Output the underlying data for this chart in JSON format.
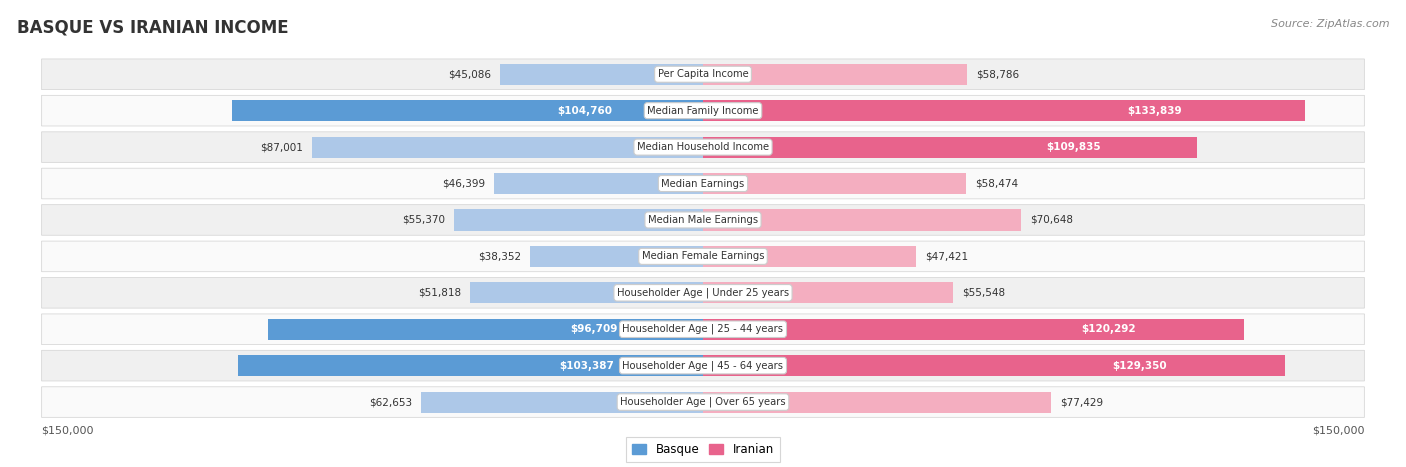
{
  "title": "BASQUE VS IRANIAN INCOME",
  "source": "Source: ZipAtlas.com",
  "categories": [
    "Per Capita Income",
    "Median Family Income",
    "Median Household Income",
    "Median Earnings",
    "Median Male Earnings",
    "Median Female Earnings",
    "Householder Age | Under 25 years",
    "Householder Age | 25 - 44 years",
    "Householder Age | 45 - 64 years",
    "Householder Age | Over 65 years"
  ],
  "basque_values": [
    45086,
    104760,
    87001,
    46399,
    55370,
    38352,
    51818,
    96709,
    103387,
    62653
  ],
  "iranian_values": [
    58786,
    133839,
    109835,
    58474,
    70648,
    47421,
    55548,
    120292,
    129350,
    77429
  ],
  "basque_color_light": "#adc8e8",
  "basque_color_dark": "#5b9bd5",
  "iranian_color_light": "#f4aec0",
  "iranian_color_dark": "#e8638c",
  "label_threshold": 90000,
  "max_value": 150000,
  "bar_height": 0.58,
  "background_color": "#ffffff",
  "row_bg_even": "#f0f0f0",
  "row_bg_odd": "#fafafa",
  "row_border_color": "#d8d8d8",
  "xlabel_left": "$150,000",
  "xlabel_right": "$150,000",
  "legend_basque": "Basque",
  "legend_iranian": "Iranian"
}
